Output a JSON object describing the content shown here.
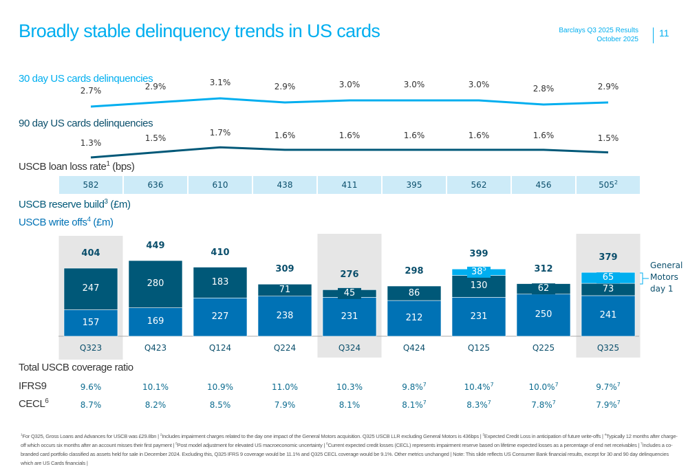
{
  "header": {
    "title": "Broadly stable delinquency trends in US cards",
    "report": "Barclays Q3 2025 Results",
    "date": "October 2025",
    "page": "11"
  },
  "colors": {
    "accent": "#00aeef",
    "reserve_build": "#005878",
    "write_offs": "#0072b5",
    "gm_day1": "#00aeef",
    "llr_bg": "#cdebf8",
    "shade": "#e6e6e6"
  },
  "chart_data": {
    "type": "bar",
    "categories": [
      "Q323",
      "Q423",
      "Q124",
      "Q224",
      "Q324",
      "Q424",
      "Q125",
      "Q225",
      "Q325"
    ],
    "highlighted_categories": [
      "Q323",
      "Q324",
      "Q325"
    ],
    "delinq30": {
      "label": "30 day US cards delinquencies",
      "values": [
        2.7,
        2.9,
        3.1,
        2.9,
        3.0,
        3.0,
        3.0,
        2.8,
        2.9
      ],
      "labels": [
        "2.7%",
        "2.9%",
        "3.1%",
        "2.9%",
        "3.0%",
        "3.0%",
        "3.0%",
        "2.8%",
        "2.9%"
      ]
    },
    "delinq90": {
      "label": "90 day US cards delinquencies",
      "values": [
        1.3,
        1.5,
        1.7,
        1.6,
        1.6,
        1.6,
        1.6,
        1.6,
        1.5
      ],
      "labels": [
        "1.3%",
        "1.5%",
        "1.7%",
        "1.6%",
        "1.6%",
        "1.6%",
        "1.6%",
        "1.6%",
        "1.5%"
      ]
    },
    "loan_loss_rate": {
      "label": "USCB loan loss rate",
      "sup": "1",
      "unit": "(bps)",
      "values": [
        "582",
        "636",
        "610",
        "438",
        "411",
        "395",
        "562",
        "456",
        "505"
      ],
      "sups": [
        "",
        "",
        "",
        "",
        "",
        "",
        "",
        "",
        "2"
      ]
    },
    "series": [
      {
        "name": "USCB write offs",
        "sup": "4",
        "unit": "(£m)",
        "values": [
          157,
          169,
          227,
          238,
          231,
          212,
          231,
          250,
          241
        ]
      },
      {
        "name": "USCB reserve build",
        "sup": "3",
        "unit": "(£m)",
        "values": [
          247,
          280,
          183,
          71,
          45,
          86,
          130,
          62,
          73
        ]
      },
      {
        "name": "",
        "values": [
          0,
          0,
          0,
          0,
          0,
          0,
          38,
          0,
          65
        ],
        "sups": [
          "",
          "",
          "",
          "",
          "",
          "",
          "5",
          "",
          ""
        ]
      }
    ],
    "totals": [
      404,
      449,
      410,
      309,
      276,
      298,
      399,
      312,
      379
    ],
    "annotation": "General Motors day 1",
    "coverage": {
      "title": "Total USCB coverage ratio",
      "ifrs9": {
        "label": "IFRS9",
        "values": [
          "9.6%",
          "10.1%",
          "10.9%",
          "11.0%",
          "10.3%",
          "9.8%",
          "10.4%",
          "10.0%",
          "9.7%"
        ],
        "sups": [
          "",
          "",
          "",
          "",
          "",
          "7",
          "7",
          "7",
          "7"
        ]
      },
      "cecl": {
        "label": "CECL",
        "sup": "6",
        "values": [
          "8.7%",
          "8.2%",
          "8.5%",
          "7.9%",
          "8.1%",
          "8.1%",
          "8.3%",
          "7.8%",
          "7.9%"
        ],
        "sups": [
          "",
          "",
          "",
          "",
          "",
          "7",
          "7",
          "7",
          "7"
        ]
      }
    }
  },
  "footnotes": [
    "For Q325, Gross Loans and Advances for USCB was £29.8bn",
    "Includes impairment charges related to the day one impact of the General Motors acquisition. Q325 USCB LLR excluding General Motors is 436bps",
    "Expected Credit Loss in anticipation of future write-offs",
    "Typically 12 months after charge-off which occurs six months after an account misses their first payment",
    "Post model adjustment for elevated US macroeconomic uncertainty",
    "Current expected credit losses (CECL) represents impairment reserve based on lifetime expected losses as a percentage of end net receivables",
    "Includes a co-branded card portfolio classified as assets held for sale in December 2024. Excluding this, Q325 IFRS 9 coverage would be 11.1% and Q325 CECL coverage would be 9.1%. Other metrics unchanged"
  ],
  "note": "Note: This slide reflects US Consumer Bank financial results, except for 30 and 90 day delinquencies which are US Cards financials"
}
